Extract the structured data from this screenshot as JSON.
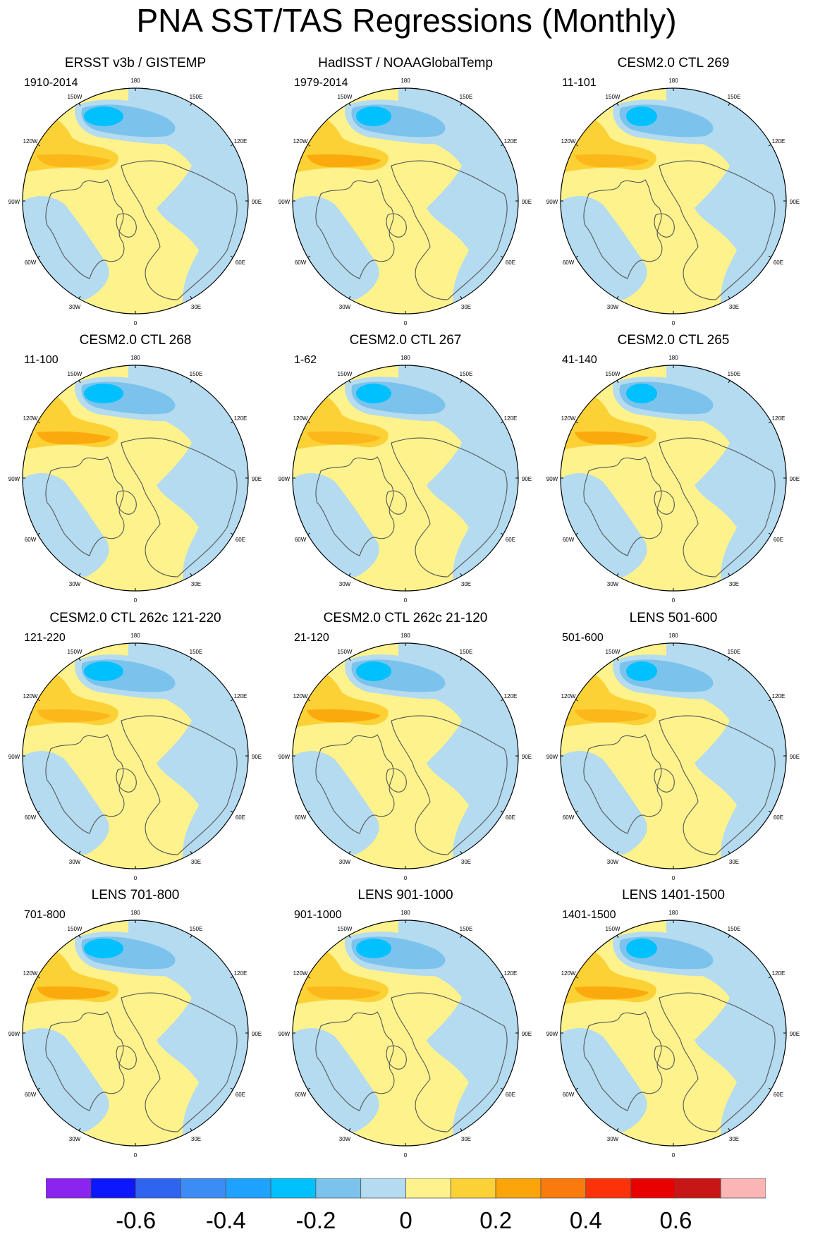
{
  "figure_title": "PNA SST/TAS Regressions (Monthly)",
  "colors": {
    "ocean": "#fdf28c",
    "neg02": "#b4dbf0",
    "neg04": "#7bc3ec",
    "cyan": "#00c0fd",
    "pos02": "#fcd135",
    "pos04": "#fba50a",
    "land_outline": "#555555",
    "missing": "#ffffff"
  },
  "lon_labels": [
    "180",
    "150E",
    "120E",
    "90E",
    "60E",
    "30E",
    "0",
    "30W",
    "60W",
    "90W",
    "120W",
    "150W"
  ],
  "panels": [
    {
      "title": "ERSST v3b / GISTEMP",
      "years": "1910-2014"
    },
    {
      "title": "HadISST / NOAAGlobalTemp",
      "years": "1979-2014"
    },
    {
      "title": "CESM2.0 CTL 269",
      "years": "11-101"
    },
    {
      "title": "CESM2.0 CTL 268",
      "years": "11-100"
    },
    {
      "title": "CESM2.0 CTL 267",
      "years": "1-62"
    },
    {
      "title": "CESM2.0 CTL 265",
      "years": "41-140"
    },
    {
      "title": "CESM2.0 CTL 262c 121-220",
      "years": "121-220"
    },
    {
      "title": "CESM2.0 CTL 262c 21-120",
      "years": "21-120"
    },
    {
      "title": "LENS 501-600",
      "years": "501-600"
    },
    {
      "title": "LENS 701-800",
      "years": "701-800"
    },
    {
      "title": "LENS 901-1000",
      "years": "901-1000"
    },
    {
      "title": "LENS 1401-1500",
      "years": "1401-1500"
    }
  ],
  "colorbar": {
    "colors": [
      "#8b24ef",
      "#0d17fb",
      "#2e64ef",
      "#3b8cf5",
      "#1fa1ff",
      "#00c0fd",
      "#7bc3ec",
      "#b4dbf0",
      "#fdf28c",
      "#fcd135",
      "#fba50a",
      "#fa7a0c",
      "#fc3308",
      "#e80000",
      "#c81616",
      "#fcb5b5"
    ],
    "labels": [
      "-0.6",
      "-0.4",
      "-0.2",
      "0",
      "0.2",
      "0.4",
      "0.6"
    ]
  }
}
